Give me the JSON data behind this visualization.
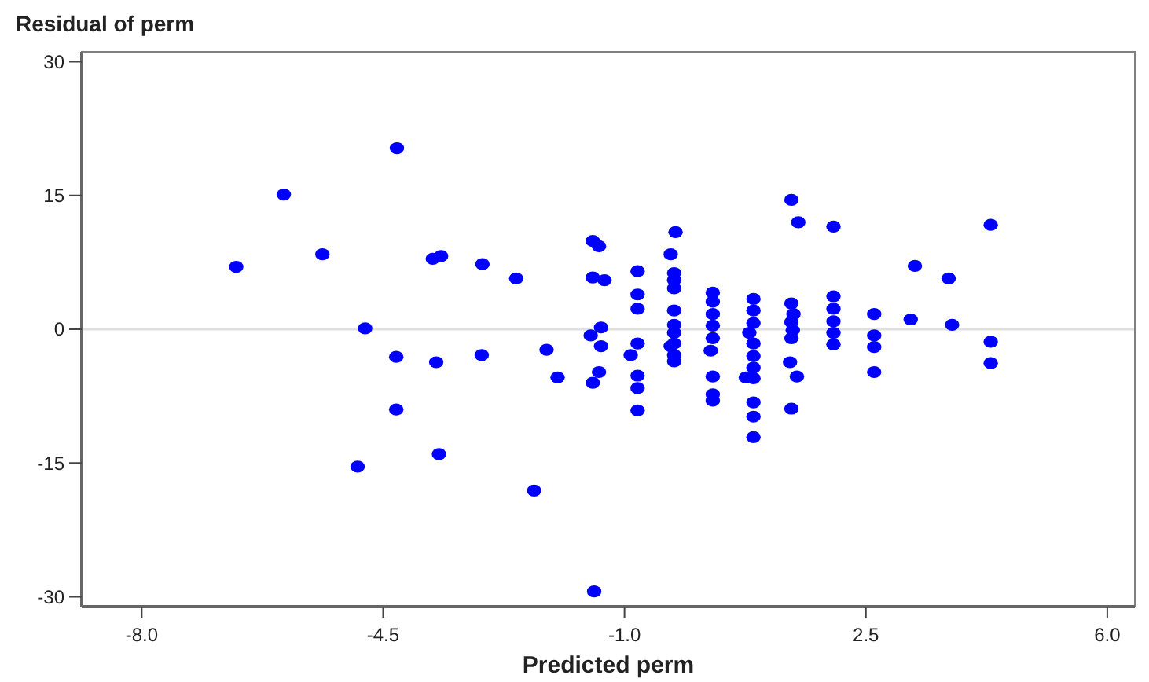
{
  "chart_data": {
    "type": "scatter",
    "ylabel": "Residual of perm",
    "xlabel": "Predicted perm",
    "xlim": [
      -8.87,
      6.4
    ],
    "ylim": [
      -31.1,
      31.1
    ],
    "xticks": [
      {
        "value": -8,
        "label": "-8.0"
      },
      {
        "value": -4.5,
        "label": "-4.5"
      },
      {
        "value": -1,
        "label": "-1.0"
      },
      {
        "value": 2.5,
        "label": "2.5"
      },
      {
        "value": 6,
        "label": "6.0"
      }
    ],
    "yticks": [
      -30,
      -15,
      0,
      15,
      30
    ],
    "marker": "circle",
    "ref_lines": [
      {
        "axis": "y",
        "value": 0,
        "color": "#e0e0e0"
      }
    ],
    "series": [
      {
        "color": "#0000ff",
        "x": [
          -6.63,
          -5.94,
          -5.38,
          -4.3,
          -4.76,
          -4.87,
          -4.31,
          -4.31,
          -3.78,
          -3.66,
          -3.73,
          -3.69,
          -3.06,
          -3.07,
          -2.57,
          -2.13,
          -1.97,
          -2.31,
          -1.44,
          -1.46,
          -1.37,
          -1.46,
          -1.29,
          -1.34,
          -1.49,
          -1.34,
          -1.37,
          -1.46,
          -0.81,
          -0.81,
          -0.81,
          -0.81,
          -0.91,
          -0.81,
          -0.81,
          -0.81,
          -0.26,
          -0.33,
          -0.28,
          -0.28,
          -0.28,
          -0.28,
          -0.28,
          -0.28,
          -0.28,
          -0.33,
          -0.28,
          -0.28,
          0.28,
          0.28,
          0.28,
          0.28,
          0.28,
          0.25,
          0.28,
          0.28,
          0.28,
          0.87,
          0.87,
          0.87,
          0.81,
          0.87,
          0.87,
          0.87,
          0.76,
          0.87,
          0.87,
          0.87,
          0.87,
          1.42,
          1.52,
          1.42,
          1.45,
          1.42,
          1.44,
          1.42,
          1.4,
          1.5,
          1.42,
          2.03,
          2.03,
          2.03,
          2.03,
          2.03,
          2.03,
          2.62,
          2.62,
          2.62,
          2.62,
          3.21,
          3.15,
          3.7,
          3.75,
          4.31,
          4.31,
          4.31
        ],
        "values": [
          7.0,
          15.1,
          8.4,
          20.3,
          0.1,
          -15.4,
          -3.1,
          -9.0,
          7.9,
          8.2,
          -3.7,
          -14.0,
          7.3,
          -2.9,
          5.7,
          -2.3,
          -5.4,
          -18.1,
          -29.4,
          9.9,
          9.3,
          5.8,
          5.5,
          0.2,
          -0.7,
          -1.9,
          -4.8,
          -6.0,
          6.5,
          3.9,
          2.3,
          -1.6,
          -2.9,
          -5.2,
          -6.6,
          -9.1,
          10.9,
          8.4,
          6.3,
          5.5,
          4.6,
          2.1,
          0.5,
          -0.4,
          -1.6,
          -1.9,
          -2.9,
          -3.6,
          4.1,
          3.1,
          1.7,
          0.4,
          -1.0,
          -2.4,
          -5.3,
          -7.3,
          -8.0,
          3.4,
          2.1,
          0.7,
          -0.4,
          -1.6,
          -3.0,
          -4.3,
          -5.4,
          -5.5,
          -8.2,
          -9.8,
          -12.1,
          14.5,
          12.0,
          2.9,
          1.7,
          0.8,
          -0.1,
          -1.0,
          -3.7,
          -5.3,
          -8.9,
          11.5,
          3.7,
          2.3,
          0.9,
          -0.4,
          -1.7,
          1.7,
          -0.7,
          -2.0,
          -4.8,
          7.1,
          1.1,
          5.7,
          0.5,
          11.7,
          -1.4,
          -3.8
        ]
      }
    ]
  }
}
